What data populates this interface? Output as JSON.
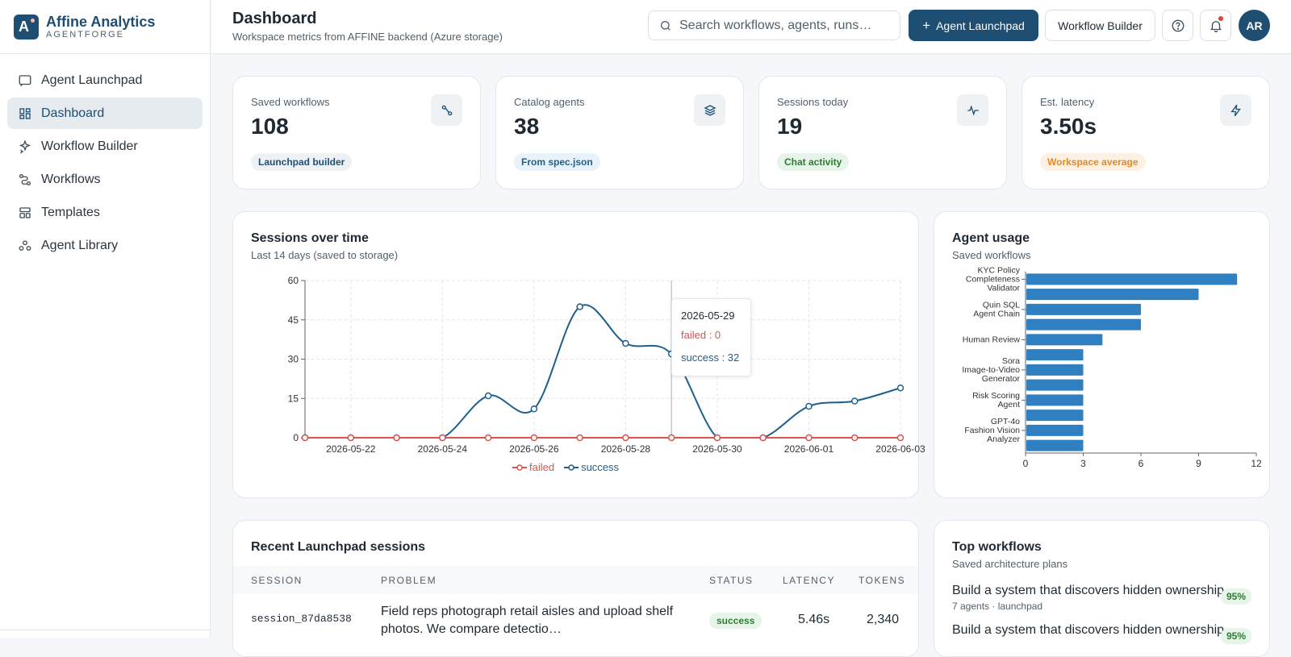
{
  "brand": {
    "name": "Affine Analytics",
    "sub": "AGENTFORGE"
  },
  "sidebar": {
    "items": [
      {
        "label": "Agent Launchpad",
        "icon": "chat-icon"
      },
      {
        "label": "Dashboard",
        "icon": "dashboard-icon",
        "active": true
      },
      {
        "label": "Workflow Builder",
        "icon": "sparkle-icon"
      },
      {
        "label": "Workflows",
        "icon": "workflow-icon"
      },
      {
        "label": "Templates",
        "icon": "template-icon"
      },
      {
        "label": "Agent Library",
        "icon": "library-icon"
      }
    ]
  },
  "header": {
    "title": "Dashboard",
    "subtitle": "Workspace metrics from AFFINE backend (Azure storage)",
    "search_placeholder": "Search workflows, agents, runs…",
    "primary_button": "Agent Launchpad",
    "secondary_button": "Workflow Builder",
    "avatar": "AR"
  },
  "stats": [
    {
      "label": "Saved workflows",
      "value": "108",
      "pill": "Launchpad builder",
      "pill_bg": "#eef2f5",
      "pill_color": "#1e4f72",
      "icon": "workflow-icon"
    },
    {
      "label": "Catalog agents",
      "value": "38",
      "pill": "From spec.json",
      "pill_bg": "#e8f2fb",
      "pill_color": "#1e5f8c",
      "icon": "layers-icon"
    },
    {
      "label": "Sessions today",
      "value": "19",
      "pill": "Chat activity",
      "pill_bg": "#e6f4ea",
      "pill_color": "#2e7d32",
      "icon": "activity-icon"
    },
    {
      "label": "Est. latency",
      "value": "3.50s",
      "pill": "Workspace average",
      "pill_bg": "#fdf1e3",
      "pill_color": "#e08a2c",
      "icon": "bolt-icon"
    }
  ],
  "sessions_card": {
    "title": "Sessions over time",
    "subtitle": "Last 14 days (saved to storage)",
    "tooltip": {
      "date": "2026-05-29",
      "failed": "failed : 0",
      "success": "success : 32"
    },
    "legend": {
      "failed": "failed",
      "success": "success"
    }
  },
  "usage_card": {
    "title": "Agent usage",
    "subtitle": "Saved workflows"
  },
  "recent_card": {
    "title": "Recent Launchpad sessions",
    "columns": [
      "SESSION",
      "PROBLEM",
      "STATUS",
      "LATENCY",
      "TOKENS"
    ],
    "rows": [
      {
        "session": "session_87da8538",
        "problem_line1": "Field reps photograph retail aisles and upload shelf",
        "problem_line2": "photos. We compare detectio…",
        "status": "success",
        "latency": "5.46s",
        "tokens": "2,340"
      }
    ]
  },
  "top_card": {
    "title": "Top workflows",
    "subtitle": "Saved architecture plans",
    "items": [
      {
        "title": "Build a system that discovers hidden ownership",
        "meta": "7 agents · launchpad",
        "pct": "95%"
      },
      {
        "title": "Build a system that discovers hidden ownership",
        "meta": "",
        "pct": "95%"
      }
    ]
  },
  "colors": {
    "accent": "#1e4f72",
    "failed": "#d9534f",
    "success": "#1e5f8c",
    "bar": "#2f7fc1"
  },
  "chart_data": [
    {
      "type": "line",
      "x": [
        "2026-05-21",
        "2026-05-22",
        "2026-05-23",
        "2026-05-24",
        "2026-05-25",
        "2026-05-26",
        "2026-05-27",
        "2026-05-28",
        "2026-05-29",
        "2026-05-30",
        "2026-05-31",
        "2026-06-01",
        "2026-06-02",
        "2026-06-03"
      ],
      "x_tick_labels": [
        "2026-05-22",
        "2026-05-24",
        "2026-05-26",
        "2026-05-28",
        "2026-05-30",
        "2026-06-01",
        "2026-06-03"
      ],
      "series": [
        {
          "name": "failed",
          "values": [
            0,
            0,
            0,
            0,
            0,
            0,
            0,
            0,
            0,
            0,
            0,
            0,
            0,
            0
          ]
        },
        {
          "name": "success",
          "values": [
            0,
            0,
            0,
            0,
            16,
            11,
            50,
            36,
            32,
            0,
            0,
            12,
            14,
            19
          ]
        }
      ],
      "ylim": [
        0,
        60
      ],
      "y_ticks": [
        0,
        15,
        30,
        45,
        60
      ],
      "grid": true,
      "legend": "bottom"
    },
    {
      "type": "bar",
      "orientation": "horizontal",
      "categories": [
        "KYC Policy Completeness Validator",
        "",
        "Quin SQL Agent Chain",
        "",
        "Human Review",
        "",
        "Sora Image-to-Video Generator",
        "",
        "Risk Scoring Agent",
        "",
        "GPT-4o Fashion Vision Analyzer",
        ""
      ],
      "category_labels": [
        [
          "KYC Policy",
          "Completeness",
          "Validator"
        ],
        [],
        [
          "Quin SQL",
          "Agent Chain"
        ],
        [],
        [
          "Human Review"
        ],
        [],
        [
          "Sora",
          "Image-to-Video",
          "Generator"
        ],
        [],
        [
          "Risk Scoring",
          "Agent"
        ],
        [],
        [
          "GPT-4o",
          "Fashion Vision",
          "Analyzer"
        ],
        []
      ],
      "values": [
        11,
        9,
        6,
        6,
        4,
        3,
        3,
        3,
        3,
        3,
        3,
        3
      ],
      "xlim": [
        0,
        12
      ],
      "x_ticks": [
        0,
        3,
        6,
        9,
        12
      ]
    }
  ]
}
